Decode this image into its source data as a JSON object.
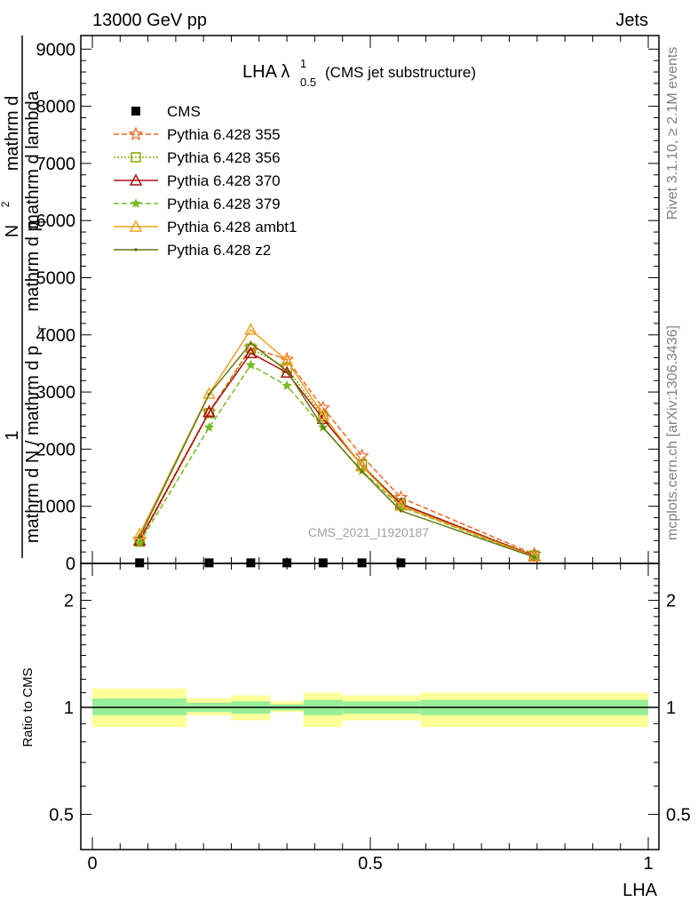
{
  "header": {
    "left": "13000 GeV pp",
    "right": "Jets"
  },
  "side_labels": {
    "rivet": "Rivet 3.1.10, ≥ 2.1M events",
    "mcplots": "mcplots.cern.ch [arXiv:1306.3436]"
  },
  "plot_title": {
    "main": "LHA λ",
    "sup": "1",
    "sub": "0.5",
    "suffix": "(CMS jet substructure)"
  },
  "watermark": "CMS_2021_I1920187",
  "y_label": {
    "numerator_1": "mathrm d",
    "numerator_sup": "2",
    "numerator_2": "N",
    "denominator": "mathrm d p",
    "denominator_sub": "T",
    "denominator_2": " mathrm d lambda",
    "prefactor_num": "1",
    "prefactor_den": "mathrm d N / mathrm d p",
    "prefactor_den_sub": "T"
  },
  "ratio_ylabel": "Ratio to CMS",
  "x_label": "LHA",
  "x_ticks": [
    "0",
    "0.5",
    "1"
  ],
  "y_ticks_main": [
    "0",
    "1000",
    "2000",
    "3000",
    "4000",
    "5000",
    "6000",
    "7000",
    "8000",
    "9000"
  ],
  "y_ticks_ratio": [
    "0.5",
    "1",
    "2"
  ],
  "legend": [
    {
      "name": "CMS",
      "color": "#000000",
      "marker": "square",
      "dash": "none"
    },
    {
      "name": "Pythia 6.428 355",
      "color": "#ee6622",
      "marker": "star",
      "dash": "6,3"
    },
    {
      "name": "Pythia 6.428 356",
      "color": "#88aa00",
      "marker": "open-square",
      "dash": "2,2"
    },
    {
      "name": "Pythia 6.428 370",
      "color": "#aa1111",
      "marker": "open-triangle",
      "dash": "none"
    },
    {
      "name": "Pythia 6.428 379",
      "color": "#77bb22",
      "marker": "small-star",
      "dash": "6,3"
    },
    {
      "name": "Pythia 6.428 ambt1",
      "color": "#f0a020",
      "marker": "open-triangle",
      "dash": "none"
    },
    {
      "name": "Pythia 6.428 z2",
      "color": "#667711",
      "marker": "dot",
      "dash": "none"
    }
  ],
  "chart_data": {
    "type": "line",
    "xlabel": "LHA",
    "ylabel": "1/(mathrm d N / mathrm d p_T) mathrm d^2N/(mathrm d p_T mathrm d lambda)",
    "xlim": [
      0,
      1
    ],
    "ylim": [
      0,
      9200
    ],
    "ratio_ylim": [
      0.4,
      2.4
    ],
    "ratio_log": true,
    "bins": [
      {
        "lo": 0.0,
        "hi": 0.17
      },
      {
        "lo": 0.17,
        "hi": 0.25
      },
      {
        "lo": 0.25,
        "hi": 0.32
      },
      {
        "lo": 0.32,
        "hi": 0.38
      },
      {
        "lo": 0.38,
        "hi": 0.45
      },
      {
        "lo": 0.45,
        "hi": 0.59
      },
      {
        "lo": 0.59,
        "hi": 1.0
      }
    ],
    "cms": {
      "x": [
        0.085,
        0.21,
        0.285,
        0.35,
        0.415,
        0.485,
        0.555
      ],
      "y": [
        10,
        10,
        10,
        10,
        10,
        10,
        10
      ]
    },
    "ratio_bands": {
      "outer": [
        [
          0.88,
          1.13
        ],
        [
          0.95,
          1.06
        ],
        [
          0.92,
          1.08
        ],
        [
          0.97,
          1.04
        ],
        [
          0.88,
          1.1
        ],
        [
          0.92,
          1.08
        ],
        [
          0.88,
          1.1
        ]
      ],
      "inner": [
        [
          0.95,
          1.06
        ],
        [
          0.97,
          1.03
        ],
        [
          0.96,
          1.04
        ],
        [
          0.98,
          1.02
        ],
        [
          0.95,
          1.05
        ],
        [
          0.96,
          1.04
        ],
        [
          0.95,
          1.05
        ]
      ]
    },
    "series": [
      {
        "name": "Pythia 6.428 355",
        "x": [
          0.085,
          0.21,
          0.285,
          0.35,
          0.415,
          0.485,
          0.555,
          0.795
        ],
        "y": [
          420,
          2650,
          3780,
          3570,
          2720,
          1880,
          1150,
          160
        ]
      },
      {
        "name": "Pythia 6.428 356",
        "x": [
          0.085,
          0.21,
          0.285,
          0.35,
          0.415,
          0.485,
          0.555,
          0.795
        ],
        "y": [
          380,
          2630,
          3760,
          3420,
          2570,
          1730,
          1050,
          140
        ]
      },
      {
        "name": "Pythia 6.428 370",
        "x": [
          0.085,
          0.21,
          0.285,
          0.35,
          0.415,
          0.485,
          0.555,
          0.795
        ],
        "y": [
          400,
          2650,
          3680,
          3340,
          2530,
          1710,
          1040,
          130
        ]
      },
      {
        "name": "Pythia 6.428 379",
        "x": [
          0.085,
          0.21,
          0.285,
          0.35,
          0.415,
          0.485,
          0.555,
          0.795
        ],
        "y": [
          360,
          2380,
          3470,
          3110,
          2380,
          1620,
          990,
          110
        ]
      },
      {
        "name": "Pythia 6.428 ambt1",
        "x": [
          0.085,
          0.21,
          0.285,
          0.35,
          0.415,
          0.485,
          0.555,
          0.795
        ],
        "y": [
          510,
          2970,
          4090,
          3550,
          2600,
          1700,
          1010,
          120
        ]
      },
      {
        "name": "Pythia 6.428 z2",
        "x": [
          0.085,
          0.21,
          0.285,
          0.35,
          0.415,
          0.485,
          0.555,
          0.795
        ],
        "y": [
          460,
          2960,
          3850,
          3370,
          2380,
          1610,
          920,
          110
        ]
      }
    ]
  }
}
